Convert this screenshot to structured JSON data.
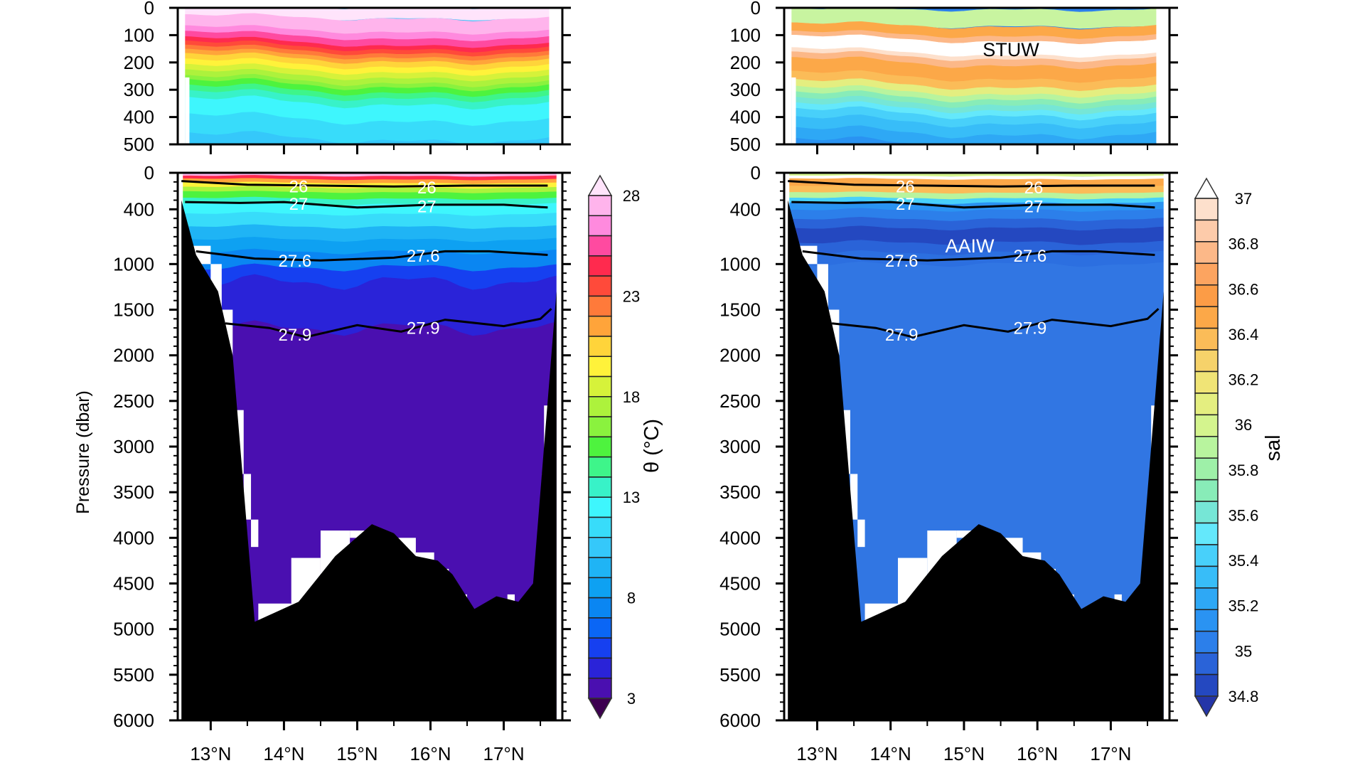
{
  "chart_data": [
    {
      "type": "heatmap",
      "variable": "theta",
      "panel": "left",
      "xlabel": "",
      "ylabel": "Pressure (dbar)",
      "x_ticks": [
        "13°N",
        "14°N",
        "15°N",
        "16°N",
        "17°N"
      ],
      "x_tick_values": [
        13,
        14,
        15,
        16,
        17
      ],
      "xlim": [
        12.55,
        17.8
      ],
      "top_panel": {
        "ylim": [
          0,
          500
        ],
        "y_ticks": [
          "0",
          "100",
          "200",
          "300",
          "400",
          "500"
        ],
        "y_tick_values": [
          0,
          100,
          200,
          300,
          400,
          500
        ]
      },
      "main_panel": {
        "ylim": [
          0,
          6000
        ],
        "y_ticks": [
          "0",
          "400",
          "1000",
          "1500",
          "2000",
          "2500",
          "3000",
          "3500",
          "4000",
          "4500",
          "5000",
          "5500",
          "6000"
        ],
        "y_tick_values": [
          0,
          400,
          1000,
          1500,
          2000,
          2500,
          3000,
          3500,
          4000,
          4500,
          5000,
          5500,
          6000
        ]
      },
      "colorbar": {
        "label": "θ (°C)",
        "min": 3,
        "max": 28,
        "step": 1,
        "tick_labels": [
          "28",
          "23",
          "18",
          "13",
          "8",
          "3"
        ],
        "tick_values": [
          28,
          23,
          18,
          13,
          8,
          3
        ],
        "colors": [
          "#3d0050",
          "#4a0fb0",
          "#2a23d8",
          "#1640f0",
          "#0a66f5",
          "#0a86f2",
          "#0ea1f2",
          "#1fb4f5",
          "#35c8fa",
          "#38dcfa",
          "#3ef6fd",
          "#38f2c8",
          "#3ef58a",
          "#4ef33e",
          "#8af23e",
          "#adf23c",
          "#d6f23a",
          "#fff23a",
          "#ffd43a",
          "#ffa43a",
          "#ff7a3a",
          "#ff4a3a",
          "#ff2a4e",
          "#ff4aa0",
          "#ff8ade",
          "#ffb4ec",
          "#ffe4fb"
        ]
      },
      "isopycnals": [
        {
          "label": "26",
          "pressures_by_lat": [
            [
              12.6,
              90
            ],
            [
              13.5,
              130
            ],
            [
              14.5,
              140
            ],
            [
              15.5,
              150
            ],
            [
              16.5,
              140
            ],
            [
              17.6,
              140
            ]
          ]
        },
        {
          "label": "27",
          "pressures_by_lat": [
            [
              12.65,
              320
            ],
            [
              13.4,
              330
            ],
            [
              14,
              320
            ],
            [
              15,
              380
            ],
            [
              16,
              350
            ],
            [
              17,
              350
            ],
            [
              17.6,
              380
            ]
          ]
        },
        {
          "label": "27.6",
          "pressures_by_lat": [
            [
              12.8,
              860
            ],
            [
              13.6,
              940
            ],
            [
              14.5,
              960
            ],
            [
              15.5,
              930
            ],
            [
              16.2,
              860
            ],
            [
              16.8,
              860
            ],
            [
              17.6,
              900
            ]
          ]
        },
        {
          "label": "27.9",
          "pressures_by_lat": [
            [
              13.2,
              1650
            ],
            [
              13.8,
              1700
            ],
            [
              14.3,
              1800
            ],
            [
              15,
              1670
            ],
            [
              15.6,
              1740
            ],
            [
              16.2,
              1610
            ],
            [
              17,
              1680
            ],
            [
              17.5,
              1600
            ],
            [
              17.65,
              1490
            ]
          ]
        }
      ],
      "bathymetry_by_lat": [
        [
          12.6,
          300
        ],
        [
          12.8,
          900
        ],
        [
          13.1,
          1300
        ],
        [
          13.3,
          2000
        ],
        [
          13.6,
          4920
        ],
        [
          14.2,
          4700
        ],
        [
          14.7,
          4200
        ],
        [
          15.2,
          3850
        ],
        [
          15.5,
          3950
        ],
        [
          15.8,
          4200
        ],
        [
          16.1,
          4250
        ],
        [
          16.3,
          4400
        ],
        [
          16.6,
          4780
        ],
        [
          16.9,
          4640
        ],
        [
          17.2,
          4700
        ],
        [
          17.4,
          4500
        ],
        [
          17.6,
          2500
        ],
        [
          17.7,
          1500
        ]
      ]
    },
    {
      "type": "heatmap",
      "variable": "salinity",
      "panel": "right",
      "xlabel": "",
      "ylabel": "",
      "x_ticks": [
        "13°N",
        "14°N",
        "15°N",
        "16°N",
        "17°N"
      ],
      "x_tick_values": [
        13,
        14,
        15,
        16,
        17
      ],
      "xlim": [
        12.55,
        17.8
      ],
      "top_panel": {
        "ylim": [
          0,
          500
        ],
        "y_ticks": [
          "0",
          "100",
          "200",
          "300",
          "400",
          "500"
        ],
        "y_tick_values": [
          0,
          100,
          200,
          300,
          400,
          500
        ]
      },
      "main_panel": {
        "ylim": [
          0,
          6000
        ],
        "y_ticks": [
          "0",
          "400",
          "1000",
          "1500",
          "2000",
          "2500",
          "3000",
          "3500",
          "4000",
          "4500",
          "5000",
          "5500",
          "6000"
        ],
        "y_tick_values": [
          0,
          400,
          1000,
          1500,
          2000,
          2500,
          3000,
          3500,
          4000,
          4500,
          5000,
          5500,
          6000
        ]
      },
      "colorbar": {
        "label": "sal",
        "min": 34.8,
        "max": 37,
        "step": 0.1,
        "tick_labels": [
          "37",
          "36.8",
          "36.6",
          "36.4",
          "36.2",
          "36",
          "35.8",
          "35.6",
          "35.4",
          "35.2",
          "35",
          "34.8"
        ],
        "tick_values": [
          37,
          36.8,
          36.6,
          36.4,
          36.2,
          36,
          35.8,
          35.6,
          35.4,
          35.2,
          35,
          34.8
        ],
        "colors": [
          "#2435a8",
          "#2448c0",
          "#2a63d8",
          "#2c7fea",
          "#2a93f2",
          "#2ea8f5",
          "#38bdf8",
          "#48d0fa",
          "#64e8fb",
          "#76e6d6",
          "#88ecb8",
          "#9ef0a8",
          "#b8f49e",
          "#d4f48e",
          "#e4ee80",
          "#f0e476",
          "#f6d26a",
          "#fbbc58",
          "#fca848",
          "#fc9c46",
          "#fca460",
          "#fcb888",
          "#fdcbaa",
          "#fde0cc",
          "#ffffff"
        ]
      },
      "annotations": [
        "STUW",
        "AAIW"
      ],
      "isopycnals": [
        {
          "label": "26",
          "pressures_by_lat": [
            [
              12.6,
              90
            ],
            [
              13.5,
              130
            ],
            [
              14.5,
              140
            ],
            [
              15.5,
              150
            ],
            [
              16.5,
              140
            ],
            [
              17.6,
              140
            ]
          ]
        },
        {
          "label": "27",
          "pressures_by_lat": [
            [
              12.65,
              320
            ],
            [
              13.4,
              330
            ],
            [
              14,
              320
            ],
            [
              15,
              380
            ],
            [
              16,
              350
            ],
            [
              17,
              350
            ],
            [
              17.6,
              380
            ]
          ]
        },
        {
          "label": "27.6",
          "pressures_by_lat": [
            [
              12.8,
              860
            ],
            [
              13.6,
              940
            ],
            [
              14.5,
              960
            ],
            [
              15.5,
              930
            ],
            [
              16.2,
              860
            ],
            [
              16.8,
              860
            ],
            [
              17.6,
              900
            ]
          ]
        },
        {
          "label": "27.9",
          "pressures_by_lat": [
            [
              13.2,
              1650
            ],
            [
              13.8,
              1700
            ],
            [
              14.3,
              1800
            ],
            [
              15,
              1670
            ],
            [
              15.6,
              1740
            ],
            [
              16.2,
              1610
            ],
            [
              17,
              1680
            ],
            [
              17.5,
              1600
            ],
            [
              17.65,
              1490
            ]
          ]
        }
      ],
      "bathymetry_by_lat": [
        [
          12.6,
          300
        ],
        [
          12.8,
          900
        ],
        [
          13.1,
          1300
        ],
        [
          13.3,
          2000
        ],
        [
          13.6,
          4920
        ],
        [
          14.2,
          4700
        ],
        [
          14.7,
          4200
        ],
        [
          15.2,
          3850
        ],
        [
          15.5,
          3950
        ],
        [
          15.8,
          4200
        ],
        [
          16.1,
          4250
        ],
        [
          16.3,
          4400
        ],
        [
          16.6,
          4780
        ],
        [
          16.9,
          4640
        ],
        [
          17.2,
          4700
        ],
        [
          17.4,
          4500
        ],
        [
          17.6,
          2500
        ],
        [
          17.7,
          1500
        ]
      ]
    }
  ]
}
